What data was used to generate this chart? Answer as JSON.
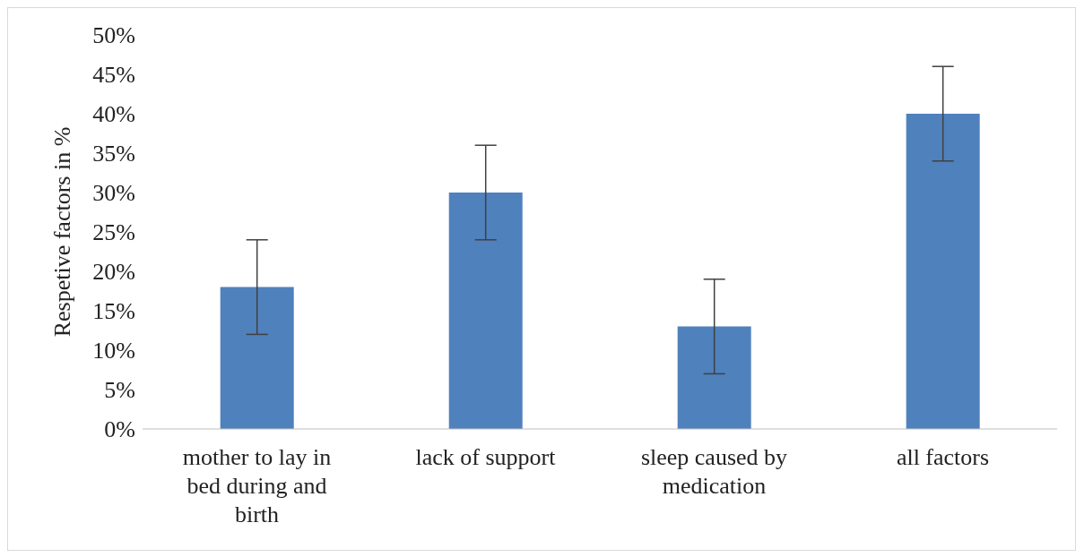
{
  "chart_data": {
    "type": "bar",
    "ylabel": "Respetive  factors in %",
    "categories": [
      "mother to lay in bed during and birth",
      "lack of support",
      "sleep caused by medication",
      "all factors"
    ],
    "values": [
      18,
      30,
      13,
      40
    ],
    "errors": [
      6,
      6,
      6,
      6
    ],
    "color": "#4f81bd",
    "ylim": [
      0,
      50
    ],
    "yticks": [
      {
        "value": 0,
        "label": "0%"
      },
      {
        "value": 5,
        "label": "5%"
      },
      {
        "value": 10,
        "label": "10%"
      },
      {
        "value": 15,
        "label": "15%"
      },
      {
        "value": 20,
        "label": "20%"
      },
      {
        "value": 25,
        "label": "25%"
      },
      {
        "value": 30,
        "label": "30%"
      },
      {
        "value": 35,
        "label": "35%"
      },
      {
        "value": 40,
        "label": "40%"
      },
      {
        "value": 45,
        "label": "45%"
      },
      {
        "value": 50,
        "label": "50%"
      }
    ],
    "grid": false,
    "legend": false
  }
}
